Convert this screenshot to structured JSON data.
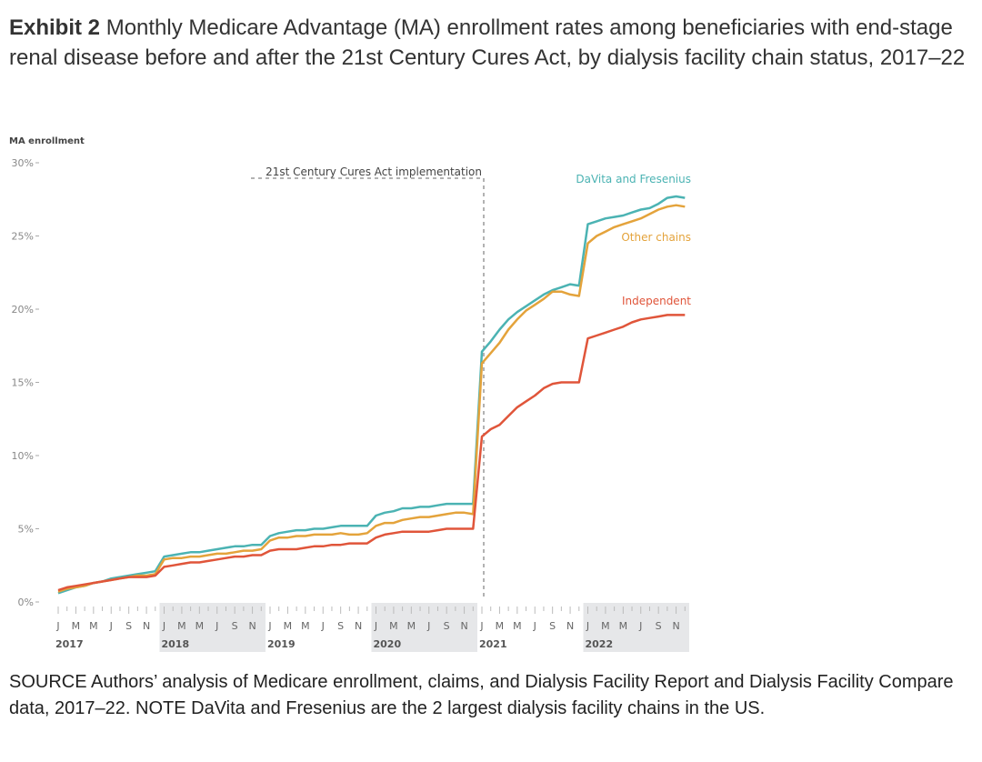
{
  "header": {
    "exhibit_label": "Exhibit 2",
    "title": "Monthly Medicare Advantage (MA) enrollment rates among beneficiaries with end-stage renal disease before and after the 21st Century Cures Act, by dialysis facility chain status, 2017–22"
  },
  "footer": {
    "note": "SOURCE Authors’ analysis of Medicare enrollment, claims, and Dialysis Facility Report and Dialysis Facility Compare data, 2017–22. NOTE DaVita and Fresenius are the 2 largest dialysis facility chains in the US."
  },
  "chart_data": {
    "type": "line",
    "title": "",
    "ylabel": "MA enrollment",
    "ylim": [
      0,
      30
    ],
    "yticks": [
      0,
      5,
      10,
      15,
      20,
      25,
      30
    ],
    "ytick_labels": [
      "0%",
      "5%",
      "10%",
      "15%",
      "20%",
      "25%",
      "30%"
    ],
    "years": [
      "2017",
      "2018",
      "2019",
      "2020",
      "2021",
      "2022"
    ],
    "month_labels": [
      "J",
      "M",
      "M",
      "J",
      "S",
      "N"
    ],
    "shaded_years": [
      "2018",
      "2020",
      "2022"
    ],
    "x_range": [
      "2017-01",
      "2022-12"
    ],
    "annotation": {
      "label": "21st Century Cures Act implementation",
      "at": "2021-01"
    },
    "grid": false,
    "legend": "inline-right",
    "series": [
      {
        "name": "DaVita and Fresenius",
        "color": "#4bb3b3",
        "values": [
          0.6,
          0.8,
          1.0,
          1.1,
          1.3,
          1.4,
          1.6,
          1.7,
          1.8,
          1.9,
          2.0,
          2.1,
          3.1,
          3.2,
          3.3,
          3.4,
          3.4,
          3.5,
          3.6,
          3.7,
          3.8,
          3.8,
          3.9,
          3.9,
          4.5,
          4.7,
          4.8,
          4.9,
          4.9,
          5.0,
          5.0,
          5.1,
          5.2,
          5.2,
          5.2,
          5.2,
          5.9,
          6.1,
          6.2,
          6.4,
          6.4,
          6.5,
          6.5,
          6.6,
          6.7,
          6.7,
          6.7,
          6.7,
          17.1,
          17.8,
          18.6,
          19.3,
          19.8,
          20.2,
          20.6,
          21.0,
          21.3,
          21.5,
          21.7,
          21.6,
          25.8,
          26.0,
          26.2,
          26.3,
          26.4,
          26.6,
          26.8,
          26.9,
          27.2,
          27.6,
          27.7,
          27.6
        ]
      },
      {
        "name": "Other chains",
        "color": "#e4a33b",
        "values": [
          0.7,
          0.9,
          1.0,
          1.1,
          1.3,
          1.4,
          1.5,
          1.6,
          1.7,
          1.8,
          1.8,
          1.9,
          2.9,
          3.0,
          3.0,
          3.1,
          3.1,
          3.2,
          3.3,
          3.3,
          3.4,
          3.5,
          3.5,
          3.6,
          4.2,
          4.4,
          4.4,
          4.5,
          4.5,
          4.6,
          4.6,
          4.6,
          4.7,
          4.6,
          4.6,
          4.7,
          5.2,
          5.4,
          5.4,
          5.6,
          5.7,
          5.8,
          5.8,
          5.9,
          6.0,
          6.1,
          6.1,
          6.0,
          16.3,
          17.0,
          17.7,
          18.6,
          19.3,
          19.9,
          20.3,
          20.7,
          21.2,
          21.2,
          21.0,
          20.9,
          24.5,
          25.0,
          25.3,
          25.6,
          25.8,
          26.0,
          26.2,
          26.5,
          26.8,
          27.0,
          27.1,
          27.0
        ]
      },
      {
        "name": "Independent",
        "color": "#e0553a",
        "values": [
          0.8,
          1.0,
          1.1,
          1.2,
          1.3,
          1.4,
          1.5,
          1.6,
          1.7,
          1.7,
          1.7,
          1.8,
          2.4,
          2.5,
          2.6,
          2.7,
          2.7,
          2.8,
          2.9,
          3.0,
          3.1,
          3.1,
          3.2,
          3.2,
          3.5,
          3.6,
          3.6,
          3.6,
          3.7,
          3.8,
          3.8,
          3.9,
          3.9,
          4.0,
          4.0,
          4.0,
          4.4,
          4.6,
          4.7,
          4.8,
          4.8,
          4.8,
          4.8,
          4.9,
          5.0,
          5.0,
          5.0,
          5.0,
          11.3,
          11.8,
          12.1,
          12.7,
          13.3,
          13.7,
          14.1,
          14.6,
          14.9,
          15.0,
          15.0,
          15.0,
          18.0,
          18.2,
          18.4,
          18.6,
          18.8,
          19.1,
          19.3,
          19.4,
          19.5,
          19.6,
          19.6,
          19.6
        ]
      }
    ]
  }
}
